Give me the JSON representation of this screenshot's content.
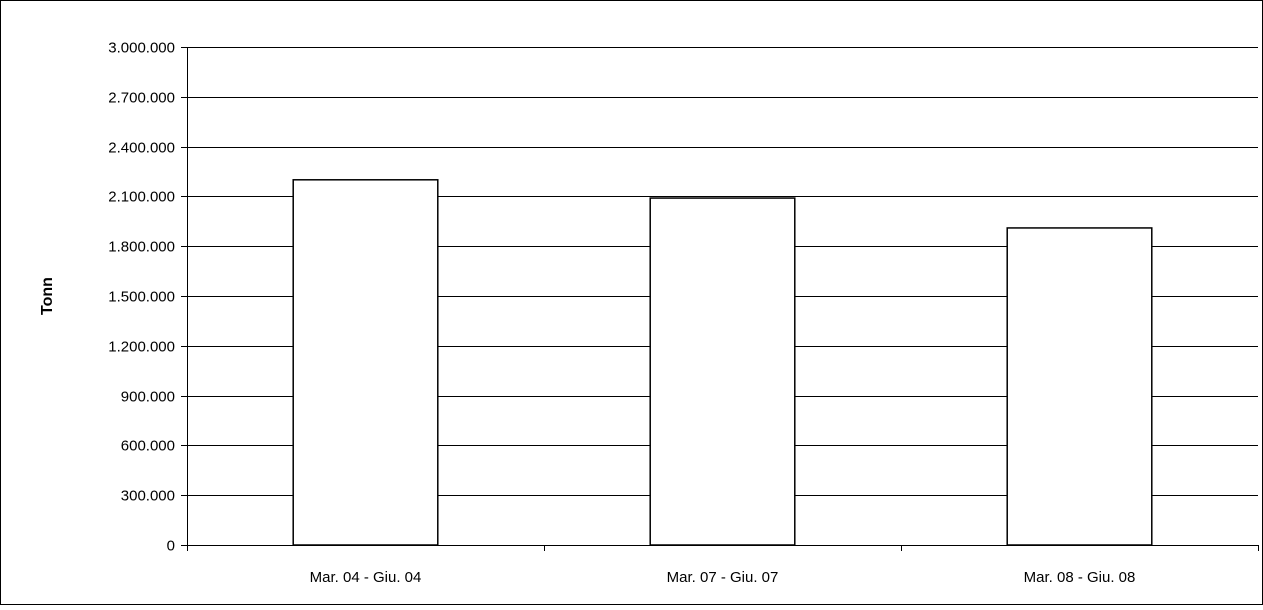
{
  "chart_data": {
    "type": "bar",
    "title": "",
    "xlabel": "",
    "ylabel": "Tonn",
    "categories": [
      "Mar. 04 - Giu. 04",
      "Mar. 07 - Giu. 07",
      "Mar. 08 - Giu. 08"
    ],
    "values": [
      2200000,
      2090000,
      1910000
    ],
    "ylim": [
      0,
      3000000
    ],
    "yticks": [
      0,
      300000,
      600000,
      900000,
      1200000,
      1500000,
      1800000,
      2100000,
      2400000,
      2700000,
      3000000
    ],
    "ytick_labels": [
      "0",
      "300.000",
      "600.000",
      "900.000",
      "1.200.000",
      "1.500.000",
      "1.800.000",
      "2.100.000",
      "2.400.000",
      "2.700.000",
      "3.000.000"
    ],
    "grid": true,
    "legend": false,
    "colors": {
      "bar_fill": "#ffffff",
      "bar_stroke": "#000000",
      "grid": "#000000",
      "axis": "#000000",
      "text": "#000000"
    }
  }
}
